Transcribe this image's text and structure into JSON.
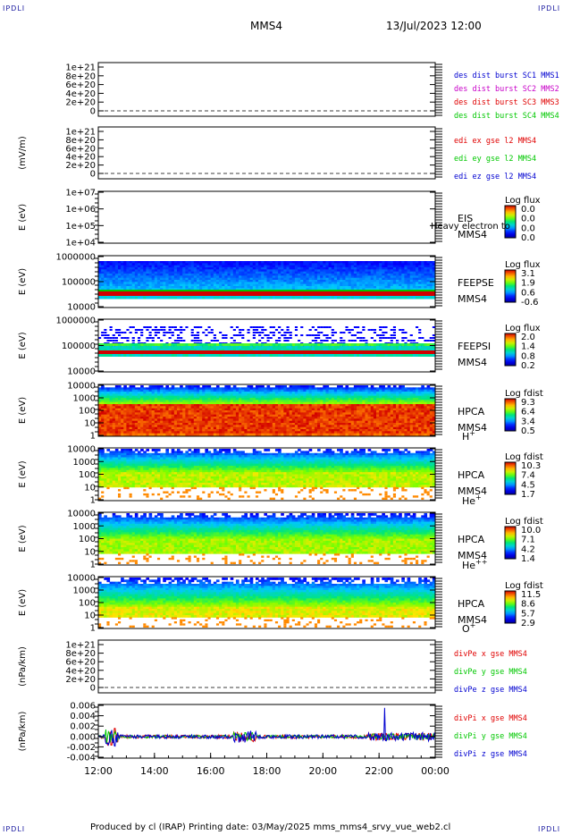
{
  "corner_tag": "IPDLI",
  "header": {
    "spacecraft": "MMS4",
    "datetime": "13/Jul/2023 12:00"
  },
  "footer": {
    "text": "Produced by cl (IRAP)   Printing date: 03/May/2025   mms_mms4_srvy_vue_web2.cl"
  },
  "colors": {
    "red": "#e00000",
    "green": "#00c800",
    "blue": "#0000d0",
    "magenta": "#c800c8"
  },
  "chart_data": {
    "type": "heatmap",
    "x_ticks": [
      "12:00",
      "14:00",
      "16:00",
      "18:00",
      "20:00",
      "22:00",
      "00:00"
    ],
    "panels": [
      {
        "id": "p1",
        "kind": "empty",
        "ylabel": "",
        "yticks": [
          "1e+21",
          "8e+20",
          "6e+20",
          "4e+20",
          "2e+20",
          "0"
        ],
        "legend": [
          {
            "text": "des dist burst SC1 MMS1",
            "color": "#0000d0"
          },
          {
            "text": "des dist burst SC2 MMS2",
            "color": "#c800c8"
          },
          {
            "text": "des dist burst SC3 MMS3",
            "color": "#e00000"
          },
          {
            "text": "des dist burst SC4 MMS4",
            "color": "#00c800"
          }
        ]
      },
      {
        "id": "p2",
        "kind": "empty",
        "ylabel": "(mV/m)",
        "yticks": [
          "1e+21",
          "8e+20",
          "6e+20",
          "4e+20",
          "2e+20",
          "0"
        ],
        "legend": [
          {
            "text": "edi ex gse l2 MMS4",
            "color": "#e00000"
          },
          {
            "text": "edi ey gse l2 MMS4",
            "color": "#00c800"
          },
          {
            "text": "edi ez gse l2 MMS4",
            "color": "#0000d0"
          }
        ]
      },
      {
        "id": "p3",
        "kind": "empty_spec",
        "ylabel": "E (eV)",
        "yticks": [
          "1e+07",
          "1e+06",
          "1e+05",
          "1e+04"
        ],
        "labels": [
          "EIS",
          "MMS4"
        ],
        "overlay": "Heavy electron to",
        "cbar_title": "Log flux",
        "cbar_ticks": [
          "0.0",
          "0.0",
          "0.0",
          "0.0"
        ]
      },
      {
        "id": "p4",
        "kind": "spec",
        "ylabel": "E (eV)",
        "yticks": [
          "1000000",
          "100000",
          "10000"
        ],
        "labels": [
          "FEEPSE",
          "MMS4"
        ],
        "cbar_title": "Log flux",
        "cbar_ticks": [
          "3.1",
          "1.9",
          "0.6",
          "-0.6"
        ]
      },
      {
        "id": "p5",
        "kind": "spec",
        "ylabel": "E (eV)",
        "yticks": [
          "1000000",
          "100000",
          "10000"
        ],
        "labels": [
          "FEEPSI",
          "MMS4"
        ],
        "cbar_title": "Log flux",
        "cbar_ticks": [
          "2.0",
          "1.4",
          "0.8",
          "0.2"
        ]
      },
      {
        "id": "p6",
        "kind": "spec",
        "ylabel": "E (eV)",
        "yticks": [
          "10000",
          "1000",
          "100",
          "10",
          "1"
        ],
        "labels": [
          "HPCA",
          "MMS4"
        ],
        "species": "H",
        "species_sup": "+",
        "cbar_title": "Log fdist",
        "cbar_ticks": [
          "9.3",
          "6.4",
          "3.4",
          "0.5"
        ]
      },
      {
        "id": "p7",
        "kind": "spec",
        "ylabel": "E (eV)",
        "yticks": [
          "10000",
          "1000",
          "100",
          "10",
          "1"
        ],
        "labels": [
          "HPCA",
          "MMS4"
        ],
        "species": "He",
        "species_sup": "+",
        "cbar_title": "Log fdist",
        "cbar_ticks": [
          "10.3",
          "7.4",
          "4.5",
          "1.7"
        ]
      },
      {
        "id": "p8",
        "kind": "spec",
        "ylabel": "E (eV)",
        "yticks": [
          "10000",
          "1000",
          "100",
          "10",
          "1"
        ],
        "labels": [
          "HPCA",
          "MMS4"
        ],
        "species": "He",
        "species_sup": "++",
        "cbar_title": "Log fdist",
        "cbar_ticks": [
          "10.0",
          "7.1",
          "4.2",
          "1.4"
        ]
      },
      {
        "id": "p9",
        "kind": "spec",
        "ylabel": "E (eV)",
        "yticks": [
          "10000",
          "1000",
          "100",
          "10",
          "1"
        ],
        "labels": [
          "HPCA",
          "MMS4"
        ],
        "species": "O",
        "species_sup": "+",
        "cbar_title": "Log fdist",
        "cbar_ticks": [
          "11.5",
          "8.6",
          "5.7",
          "2.9"
        ]
      },
      {
        "id": "p10",
        "kind": "empty",
        "ylabel": "(nPa/km)",
        "yticks": [
          "1e+21",
          "8e+20",
          "6e+20",
          "4e+20",
          "2e+20",
          "0"
        ],
        "legend": [
          {
            "text": "divPe x gse MMS4",
            "color": "#e00000"
          },
          {
            "text": "divPe y gse MMS4",
            "color": "#00c800"
          },
          {
            "text": "divPe z gse MMS4",
            "color": "#0000d0"
          }
        ]
      },
      {
        "id": "p11",
        "kind": "line",
        "ylabel": "(nPa/km)",
        "yticks": [
          "0.006",
          "0.004",
          "0.002",
          "0.000",
          "-0.002",
          "-0.004"
        ],
        "ylim": [
          -0.0045,
          0.0065
        ],
        "legend": [
          {
            "text": "divPi x gse MMS4",
            "color": "#e00000"
          },
          {
            "text": "divPi y gse MMS4",
            "color": "#00c800"
          },
          {
            "text": "divPi z gse MMS4",
            "color": "#0000d0"
          }
        ]
      }
    ]
  }
}
